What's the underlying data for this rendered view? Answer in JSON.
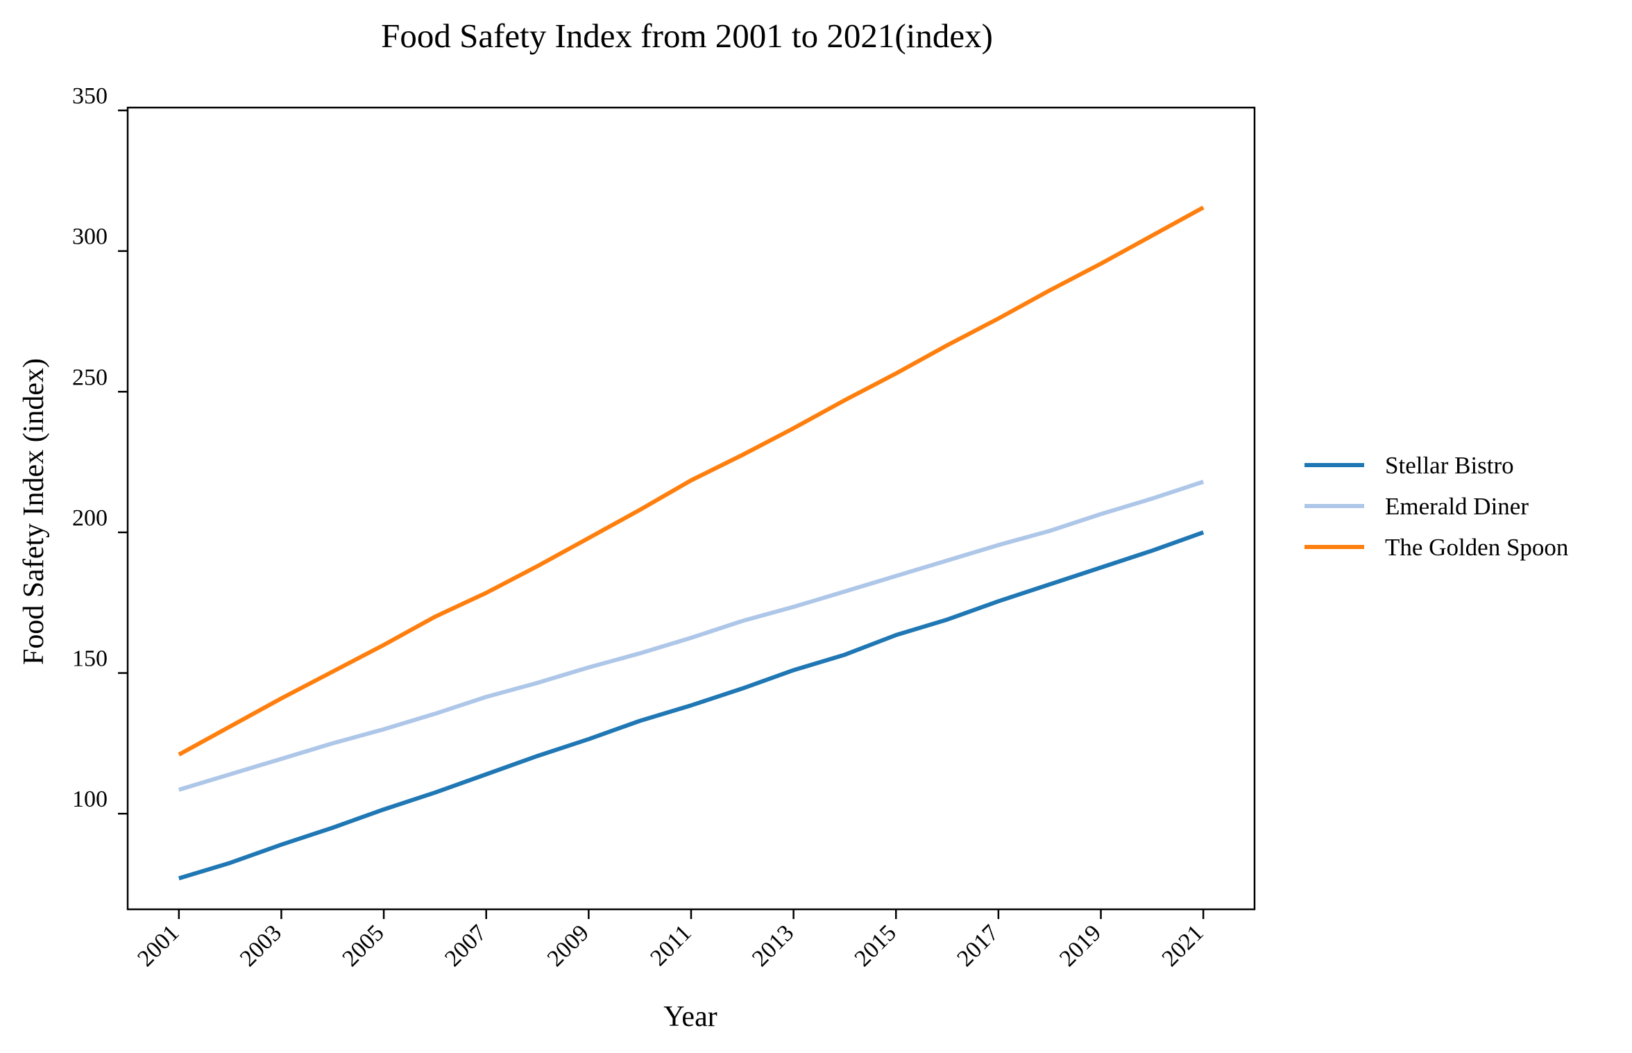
{
  "chart_data": {
    "type": "line",
    "title": "Food Safety Index from 2001 to 2021(index)",
    "xlabel": "Year",
    "ylabel": "Food Safety Index (index)",
    "x": [
      2001,
      2002,
      2003,
      2004,
      2005,
      2006,
      2007,
      2008,
      2009,
      2010,
      2011,
      2012,
      2013,
      2014,
      2015,
      2016,
      2017,
      2018,
      2019,
      2020,
      2021
    ],
    "x_tick_labels": [
      "2001",
      "2003",
      "2005",
      "2007",
      "2009",
      "2011",
      "2013",
      "2015",
      "2017",
      "2019",
      "2021"
    ],
    "y_tick_labels": [
      "100",
      "150",
      "200",
      "250",
      "300",
      "350"
    ],
    "ylim": [
      66,
      351
    ],
    "grid": false,
    "legend_position": "right",
    "series": [
      {
        "name": "Stellar Bistro",
        "color": "#1f77b4",
        "values": [
          77,
          82.5,
          89,
          95,
          101.5,
          107.5,
          114,
          120.5,
          126.5,
          133,
          138.5,
          144.5,
          151,
          156.5,
          163.5,
          169,
          175.5,
          181.5,
          187.5,
          193.5,
          200
        ]
      },
      {
        "name": "Emerald Diner",
        "color": "#aec7e8",
        "values": [
          108.5,
          114,
          119.5,
          125,
          130,
          135.5,
          141.5,
          146.5,
          152,
          157,
          162.5,
          168.5,
          173.5,
          179,
          184.5,
          190,
          195.5,
          200.5,
          206.5,
          212,
          218
        ]
      },
      {
        "name": "The Golden Spoon",
        "color": "#ff7f0e",
        "values": [
          121,
          131,
          141,
          150.5,
          160,
          170,
          178.5,
          188,
          198,
          208,
          218.5,
          227.5,
          237,
          247,
          256.5,
          266.5,
          276,
          286,
          295.5,
          305.5,
          315.5
        ]
      }
    ]
  }
}
